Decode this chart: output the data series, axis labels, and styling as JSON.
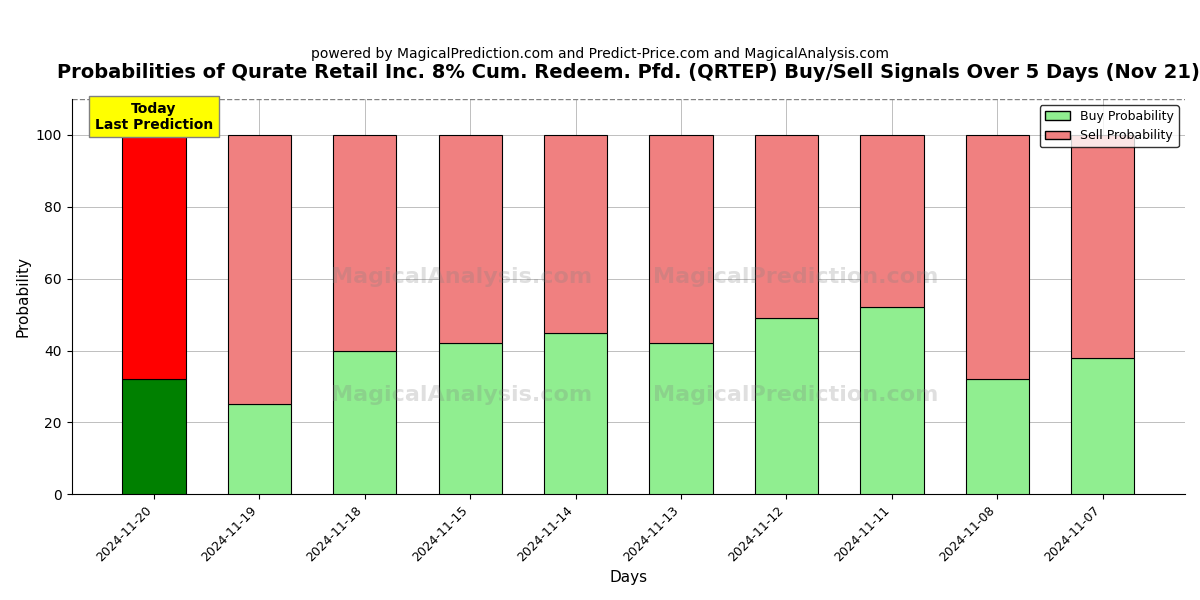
{
  "title": "Probabilities of Qurate Retail Inc. 8% Cum. Redeem. Pfd. (QRTEP) Buy/Sell Signals Over 5 Days (Nov 21)",
  "subtitle": "powered by MagicalPrediction.com and Predict-Price.com and MagicalAnalysis.com",
  "xlabel": "Days",
  "ylabel": "Probability",
  "dates": [
    "2024-11-20",
    "2024-11-19",
    "2024-11-18",
    "2024-11-15",
    "2024-11-14",
    "2024-11-13",
    "2024-11-12",
    "2024-11-11",
    "2024-11-08",
    "2024-11-07"
  ],
  "buy_probs": [
    32,
    25,
    40,
    42,
    45,
    42,
    49,
    52,
    32,
    38
  ],
  "sell_probs": [
    68,
    75,
    60,
    58,
    55,
    58,
    51,
    48,
    68,
    62
  ],
  "today_buy_color": "#008000",
  "today_sell_color": "#ff0000",
  "other_buy_color": "#90EE90",
  "other_sell_color": "#F08080",
  "today_annotation": "Today\nLast Prediction",
  "annotation_bg_color": "#ffff00",
  "annotation_font_size": 10,
  "legend_buy_label": "Buy Probability",
  "legend_sell_label": "Sell Probability",
  "ylim": [
    0,
    110
  ],
  "dashed_line_y": 110,
  "title_fontsize": 14,
  "subtitle_fontsize": 10,
  "watermark_texts": [
    "MagicalAnalysis.com",
    "MagicalPrediction.com"
  ],
  "bar_width": 0.6,
  "figsize": [
    12.0,
    6.0
  ],
  "dpi": 100
}
